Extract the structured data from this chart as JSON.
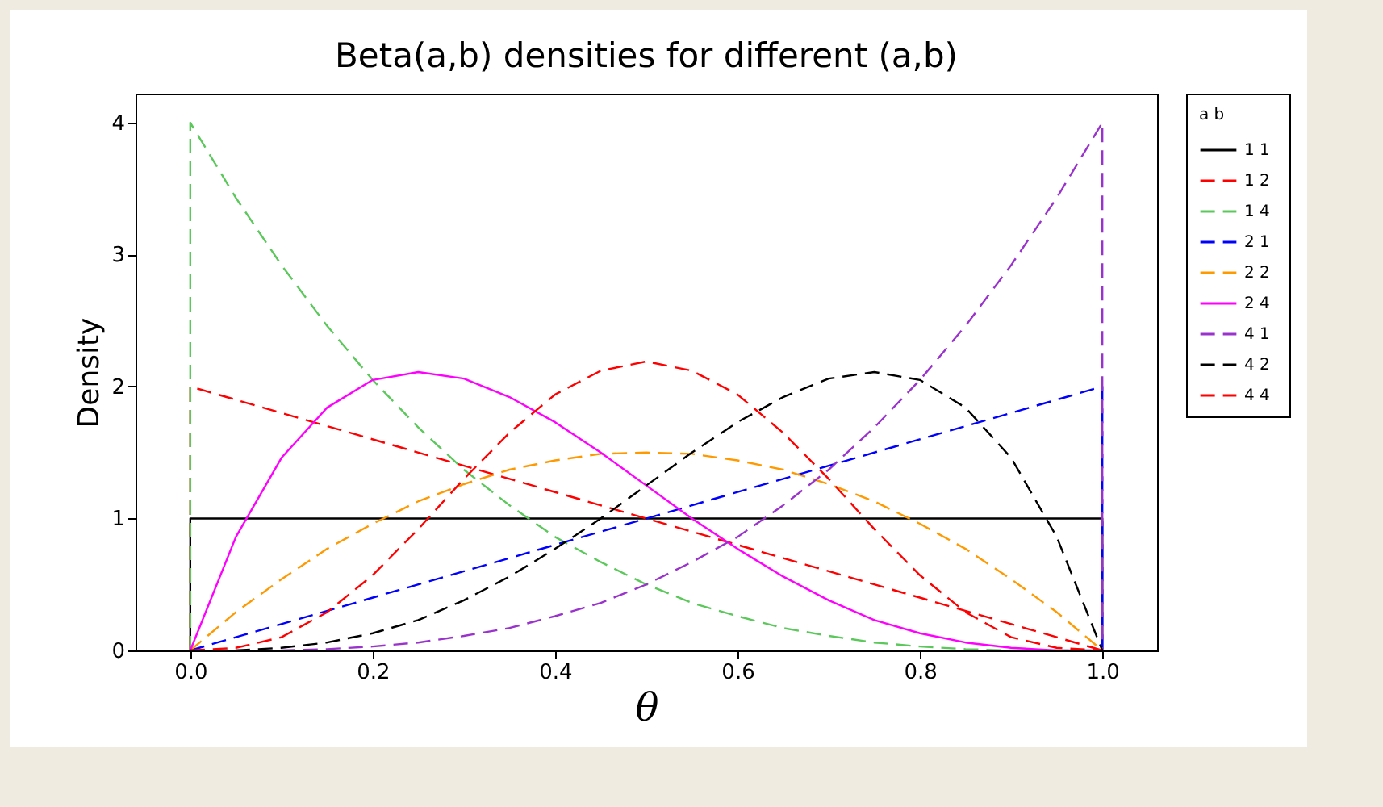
{
  "chart_data": {
    "type": "line",
    "title": "Beta(a,b) densities for different (a,b)",
    "xlabel": "θ",
    "ylabel": "Density",
    "legend_title": "a  b",
    "legend": "right",
    "grid": false,
    "marker": "none",
    "xlim": [
      -0.06,
      1.06
    ],
    "ylim": [
      0,
      4.22
    ],
    "xticks": [
      {
        "value": 0,
        "label": "0.0"
      },
      {
        "value": 0.2,
        "label": "0.2"
      },
      {
        "value": 0.4,
        "label": "0.4"
      },
      {
        "value": 0.6,
        "label": "0.6"
      },
      {
        "value": 0.8,
        "label": "0.8"
      },
      {
        "value": 1,
        "label": "1.0"
      }
    ],
    "yticks": [
      0,
      1,
      2,
      3,
      4
    ],
    "series": [
      {
        "name": "1  1",
        "color": "#000000",
        "line_style": "solid",
        "x": [
          0,
          0,
          1,
          1
        ],
        "values": [
          0,
          1,
          1,
          0
        ]
      },
      {
        "name": "1  2",
        "color": "#ff0000",
        "line_style": "dashed",
        "x": [
          0,
          0,
          1
        ],
        "values": [
          0,
          2,
          0
        ]
      },
      {
        "name": "1  4",
        "color": "#5cc85c",
        "line_style": "dashed",
        "x": [
          0,
          0,
          0.05,
          0.1,
          0.15,
          0.2,
          0.25,
          0.3,
          0.35,
          0.4,
          0.45,
          0.5,
          0.55,
          0.6,
          0.65,
          0.7,
          0.75,
          0.8,
          0.85,
          0.9,
          0.95,
          1
        ],
        "values": [
          0,
          4,
          3.43,
          2.92,
          2.46,
          2.05,
          1.69,
          1.37,
          1.1,
          0.86,
          0.67,
          0.5,
          0.36,
          0.26,
          0.17,
          0.11,
          0.06,
          0.03,
          0.01,
          0,
          0,
          0
        ]
      },
      {
        "name": "2  1",
        "color": "#0000ff",
        "line_style": "dashed",
        "x": [
          0,
          1,
          1
        ],
        "values": [
          0,
          2,
          0
        ]
      },
      {
        "name": "2  2",
        "color": "#ff9900",
        "line_style": "dashed",
        "x": [
          0,
          0.05,
          0.1,
          0.15,
          0.2,
          0.25,
          0.3,
          0.35,
          0.4,
          0.45,
          0.5,
          0.55,
          0.6,
          0.65,
          0.7,
          0.75,
          0.8,
          0.85,
          0.9,
          0.95,
          1
        ],
        "values": [
          0,
          0.29,
          0.54,
          0.77,
          0.96,
          1.13,
          1.26,
          1.37,
          1.44,
          1.49,
          1.5,
          1.49,
          1.44,
          1.37,
          1.26,
          1.13,
          0.96,
          0.77,
          0.54,
          0.29,
          0
        ]
      },
      {
        "name": "2  4",
        "color": "#ff00ff",
        "line_style": "solid",
        "x": [
          0,
          0.05,
          0.1,
          0.15,
          0.2,
          0.25,
          0.3,
          0.35,
          0.4,
          0.45,
          0.5,
          0.55,
          0.6,
          0.65,
          0.7,
          0.75,
          0.8,
          0.85,
          0.9,
          0.95,
          1
        ],
        "values": [
          0,
          0.86,
          1.46,
          1.84,
          2.05,
          2.11,
          2.06,
          1.92,
          1.73,
          1.5,
          1.25,
          1,
          0.77,
          0.56,
          0.38,
          0.23,
          0.13,
          0.06,
          0.02,
          0,
          0
        ]
      },
      {
        "name": "4  1",
        "color": "#9933cc",
        "line_style": "dashed",
        "x": [
          0,
          0.05,
          0.1,
          0.15,
          0.2,
          0.25,
          0.3,
          0.35,
          0.4,
          0.45,
          0.5,
          0.55,
          0.6,
          0.65,
          0.7,
          0.75,
          0.8,
          0.85,
          0.9,
          0.95,
          1,
          1
        ],
        "values": [
          0,
          0,
          0,
          0.01,
          0.03,
          0.06,
          0.11,
          0.17,
          0.26,
          0.36,
          0.5,
          0.67,
          0.86,
          1.1,
          1.37,
          1.69,
          2.05,
          2.46,
          2.92,
          3.43,
          4,
          0
        ]
      },
      {
        "name": "4  2",
        "color": "#000000",
        "line_style": "dashed",
        "x": [
          0,
          0.05,
          0.1,
          0.15,
          0.2,
          0.25,
          0.3,
          0.35,
          0.4,
          0.45,
          0.5,
          0.55,
          0.6,
          0.65,
          0.7,
          0.75,
          0.8,
          0.85,
          0.9,
          0.95,
          1
        ],
        "values": [
          0,
          0,
          0.02,
          0.06,
          0.13,
          0.23,
          0.38,
          0.56,
          0.77,
          1,
          1.25,
          1.5,
          1.73,
          1.92,
          2.06,
          2.11,
          2.05,
          1.84,
          1.46,
          0.86,
          0
        ]
      },
      {
        "name": "4  4",
        "color": "#ff0000",
        "line_style": "dashed",
        "x": [
          0,
          0.05,
          0.1,
          0.15,
          0.2,
          0.25,
          0.3,
          0.35,
          0.4,
          0.45,
          0.5,
          0.55,
          0.6,
          0.65,
          0.7,
          0.75,
          0.8,
          0.85,
          0.9,
          0.95,
          1
        ],
        "values": [
          0,
          0.02,
          0.1,
          0.29,
          0.57,
          0.92,
          1.3,
          1.65,
          1.94,
          2.12,
          2.19,
          2.12,
          1.94,
          1.65,
          1.3,
          0.92,
          0.57,
          0.29,
          0.1,
          0.02,
          0
        ]
      }
    ]
  }
}
